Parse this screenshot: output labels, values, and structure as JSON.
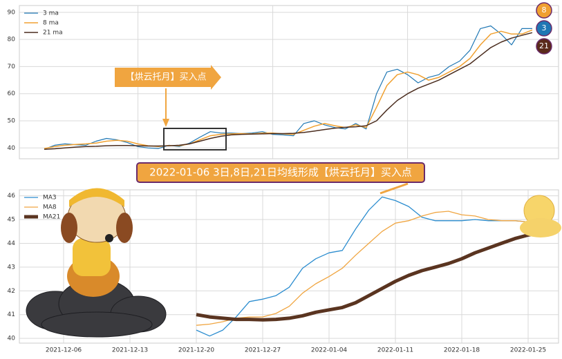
{
  "chart_data": [
    {
      "type": "line",
      "categories": [
        null,
        null,
        null,
        null,
        null,
        null,
        null,
        null,
        null,
        null,
        null,
        null,
        null,
        null,
        null,
        null,
        null,
        null,
        null,
        null,
        null,
        null,
        null,
        null,
        null,
        null,
        null,
        null,
        null,
        null,
        null,
        null,
        null,
        null,
        null,
        null,
        null,
        null,
        null,
        null,
        null,
        null,
        null,
        null,
        null,
        null,
        null,
        null
      ],
      "series": [
        {
          "name": "3 ma",
          "color": "#1f77b4",
          "width": 1.2,
          "values": [
            39.5,
            41,
            41.5,
            41.2,
            41,
            42.5,
            43.5,
            43,
            42,
            40.5,
            40,
            39.8,
            41,
            40.5,
            41.8,
            44,
            46,
            45.5,
            45.5,
            45.3,
            45.5,
            46,
            45,
            44.8,
            44.5,
            49,
            50,
            48.5,
            47.5,
            47,
            49,
            47,
            60,
            68,
            69,
            67,
            64,
            66,
            67,
            70,
            72,
            76,
            84,
            85,
            82,
            78,
            84,
            84
          ]
        },
        {
          "name": "8 ma",
          "color": "#f0a030",
          "width": 1.5,
          "values": [
            39.8,
            40.5,
            41,
            41.3,
            41.5,
            41.8,
            42.5,
            42.8,
            42.5,
            41.5,
            40.8,
            40.5,
            40.9,
            40.8,
            41.5,
            43,
            44.5,
            45,
            45.2,
            45.3,
            45.2,
            45.5,
            45.5,
            45.2,
            45,
            46.5,
            48,
            49,
            48.2,
            47.5,
            48.5,
            47.5,
            55,
            63,
            67,
            68,
            67,
            65,
            66,
            68,
            70,
            73,
            78,
            82,
            83,
            82,
            82,
            83.5
          ]
        },
        {
          "name": "21 ma",
          "color": "#4a2c1e",
          "width": 1.5,
          "values": [
            39.5,
            39.7,
            40,
            40.3,
            40.5,
            40.6,
            40.8,
            40.9,
            40.9,
            40.8,
            40.7,
            40.7,
            40.8,
            41,
            41.5,
            42.5,
            43.5,
            44.3,
            44.8,
            45,
            45.1,
            45.2,
            45.3,
            45.3,
            45.4,
            45.7,
            46.2,
            46.8,
            47.3,
            47.6,
            47.8,
            48.2,
            50,
            54,
            57.5,
            60,
            62,
            63.5,
            65,
            67,
            69,
            71,
            74,
            77,
            79,
            80.5,
            81.5,
            82.5
          ]
        }
      ],
      "ylim": [
        36,
        92.5
      ],
      "yticks": [
        40,
        50,
        60,
        70,
        80,
        90
      ],
      "grid": true,
      "legend": "upper-left",
      "annotation": "【烘云托月】买入点",
      "markers": [
        {
          "label": "8",
          "color": "#f0a030"
        },
        {
          "label": "3",
          "color": "#1f77b4"
        },
        {
          "label": "21",
          "color": "#5a2a1a"
        }
      ]
    },
    {
      "type": "line",
      "title": "2022-01-06 3日,8日,21日均线形成【烘云托月】买入点",
      "x": [
        "2021-12-06",
        "2021-12-07",
        "2021-12-08",
        "2021-12-09",
        "2021-12-10",
        "2021-12-13",
        "2021-12-14",
        "2021-12-15",
        "2021-12-16",
        "2021-12-17",
        "2021-12-20",
        "2021-12-21",
        "2021-12-22",
        "2021-12-23",
        "2021-12-24",
        "2021-12-27",
        "2021-12-28",
        "2021-12-29",
        "2021-12-30",
        "2021-12-31",
        "2022-01-04",
        "2022-01-05",
        "2022-01-06",
        "2022-01-07",
        "2022-01-10",
        "2022-01-11",
        "2022-01-12",
        "2022-01-13",
        "2022-01-14",
        "2022-01-17",
        "2022-01-18",
        "2022-01-19",
        "2022-01-20",
        "2022-01-21",
        "2022-01-24",
        "2022-01-25",
        "2022-01-26"
      ],
      "series": [
        {
          "name": "MA3",
          "color": "#2a8ccf",
          "width": 1.3,
          "values": [
            null,
            null,
            null,
            null,
            null,
            null,
            null,
            null,
            null,
            null,
            40.35,
            40.1,
            40.35,
            40.9,
            41.55,
            41.65,
            41.8,
            42.15,
            42.95,
            43.35,
            43.6,
            43.7,
            44.6,
            45.4,
            45.95,
            45.8,
            45.55,
            45.1,
            44.95,
            44.95,
            44.95,
            45,
            44.95,
            44.95,
            44.95,
            44.9,
            44.8
          ]
        },
        {
          "name": "MA8",
          "color": "#f0a540",
          "width": 1.3,
          "values": [
            null,
            null,
            null,
            null,
            null,
            null,
            null,
            null,
            null,
            null,
            40.55,
            40.6,
            40.7,
            40.85,
            40.9,
            40.9,
            41.05,
            41.35,
            41.9,
            42.3,
            42.6,
            42.95,
            43.5,
            44,
            44.5,
            44.85,
            44.95,
            45.15,
            45.3,
            45.35,
            45.2,
            45.15,
            45,
            44.95,
            44.95,
            44.9,
            44.85
          ]
        },
        {
          "name": "MA21",
          "color": "#5a3420",
          "width": 5,
          "values": [
            null,
            null,
            null,
            null,
            null,
            null,
            null,
            null,
            null,
            null,
            41,
            40.9,
            40.85,
            40.8,
            40.8,
            40.78,
            40.8,
            40.85,
            40.95,
            41.1,
            41.2,
            41.3,
            41.5,
            41.8,
            42.1,
            42.4,
            42.65,
            42.85,
            43,
            43.15,
            43.35,
            43.6,
            43.8,
            44,
            44.2,
            44.35,
            44.45
          ]
        }
      ],
      "ylim": [
        39.8,
        46.25
      ],
      "yticks": [
        40,
        41,
        42,
        43,
        44,
        45,
        46
      ],
      "xticks": [
        "2021-12-06",
        "2021-12-13",
        "2021-12-20",
        "2021-12-27",
        "2022-01-04",
        "2022-01-11",
        "2022-01-18",
        "2022-01-25"
      ],
      "grid": true,
      "legend": "upper-left"
    }
  ]
}
